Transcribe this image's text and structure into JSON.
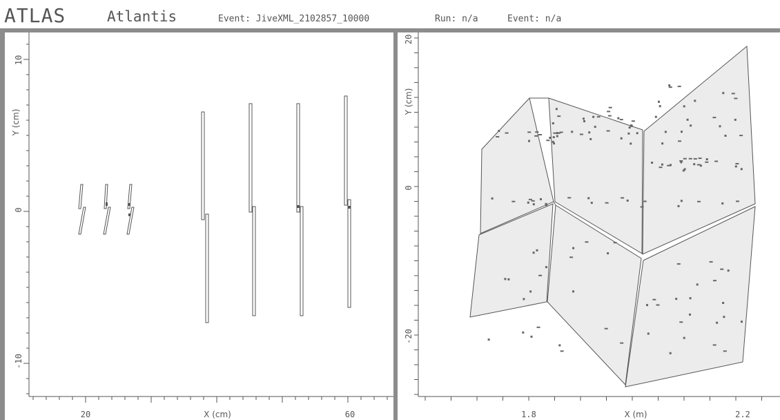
{
  "title": {
    "logo": "ATLAS",
    "app": "Atlantis",
    "event_label": "Event: JiveXML_2102857_10000",
    "run_label": "Run: n/a",
    "event2_label": "Event: n/a"
  },
  "left_view": {
    "xlabel": "X (cm)",
    "ylabel": "Y (cm)",
    "x_ticks": [
      "20",
      "60"
    ],
    "y_ticks": [
      "10",
      "0",
      "-10"
    ]
  },
  "right_view": {
    "xlabel": "X (m)",
    "ylabel": "Y (cm)",
    "x_ticks": [
      "1.8",
      "2.2"
    ],
    "y_ticks": [
      "20",
      "0",
      "-20"
    ]
  },
  "colors": {
    "frame": "#8c8c8c",
    "module_fill": "#ececec",
    "module_stroke": "#555555",
    "hit": "#777777"
  }
}
